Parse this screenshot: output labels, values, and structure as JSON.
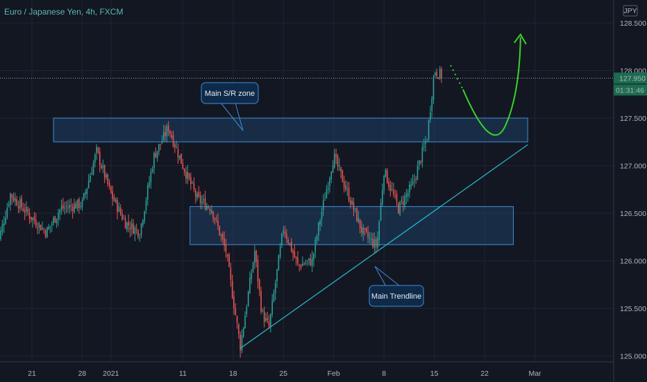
{
  "header": {
    "symbol": "Euro / Japanese Yen",
    "interval": "4h",
    "exchange": "FXCM",
    "currency_button": "JPY"
  },
  "price_axis": {
    "last_price": "127.950",
    "countdown": "01:31:46"
  },
  "annotations": {
    "zone_label": "Main S/R zone",
    "trendline_label": "Main Trendline"
  },
  "colors": {
    "background": "#131722",
    "bull": "#26a69a",
    "bear": "#ef5350",
    "zone_fill": "#1e3f63",
    "zone_border": "#3d8fe0",
    "trendline": "#22b8c8",
    "arrow": "#39d42b",
    "title": "#5db7b3"
  },
  "chart_data": {
    "type": "candlestick",
    "ylim": [
      124.95,
      128.7
    ],
    "y_ticks": [
      "125.000",
      "125.500",
      "126.000",
      "126.500",
      "127.000",
      "127.500",
      "128.000",
      "128.500"
    ],
    "x_ticks": [
      "21",
      "28",
      "2021",
      "11",
      "18",
      "25",
      "Feb",
      "8",
      "15",
      "22",
      "Mar"
    ],
    "price_path": [
      {
        "x": "Dec 16",
        "price": 126.1
      },
      {
        "x": "Dec 18",
        "price": 126.7
      },
      {
        "x": "Dec 21",
        "price": 126.45
      },
      {
        "x": "Dec 23",
        "price": 126.3
      },
      {
        "x": "Dec 25",
        "price": 126.55
      },
      {
        "x": "Dec 28",
        "price": 126.6
      },
      {
        "x": "Dec 30",
        "price": 127.15
      },
      {
        "x": "Jan 1",
        "price": 126.7
      },
      {
        "x": "Jan 3",
        "price": 126.4
      },
      {
        "x": "Jan 5",
        "price": 126.3
      },
      {
        "x": "Jan 7",
        "price": 127.1
      },
      {
        "x": "Jan 9",
        "price": 127.4
      },
      {
        "x": "Jan 11",
        "price": 127.0
      },
      {
        "x": "Jan 13",
        "price": 126.65
      },
      {
        "x": "Jan 15",
        "price": 126.55
      },
      {
        "x": "Jan 17",
        "price": 126.1
      },
      {
        "x": "Jan 19",
        "price": 125.1
      },
      {
        "x": "Jan 20",
        "price": 125.6
      },
      {
        "x": "Jan 21",
        "price": 126.1
      },
      {
        "x": "Jan 22",
        "price": 125.45
      },
      {
        "x": "Jan 23",
        "price": 125.3
      },
      {
        "x": "Jan 25",
        "price": 126.35
      },
      {
        "x": "Jan 27",
        "price": 125.95
      },
      {
        "x": "Jan 29",
        "price": 126.0
      },
      {
        "x": "Jan 30",
        "price": 126.4
      },
      {
        "x": "Feb 1",
        "price": 127.1
      },
      {
        "x": "Feb 3",
        "price": 126.7
      },
      {
        "x": "Feb 5",
        "price": 126.3
      },
      {
        "x": "Feb 7",
        "price": 126.15
      },
      {
        "x": "Feb 8",
        "price": 126.95
      },
      {
        "x": "Feb 10",
        "price": 126.55
      },
      {
        "x": "Feb 12",
        "price": 126.8
      },
      {
        "x": "Feb 14",
        "price": 127.3
      },
      {
        "x": "Feb 15",
        "price": 128.0
      },
      {
        "x": "Feb 16",
        "price": 127.95
      }
    ],
    "zones": [
      {
        "name": "Main S/R zone",
        "from_date": "Dec 24",
        "to_date": "Feb 28",
        "y_low": 127.25,
        "y_high": 127.5
      },
      {
        "from_date": "Jan 12",
        "to_date": "Feb 26",
        "y_low": 126.17,
        "y_high": 126.57
      }
    ],
    "trendline": {
      "label": "Main Trendline",
      "from": {
        "x": "Jan 19",
        "y": 125.08
      },
      "to": {
        "x": "Feb 28",
        "y": 127.22
      }
    },
    "projection": {
      "start": {
        "x": "Feb 19",
        "y": 127.8
      },
      "dip": {
        "x": "Feb 23",
        "y": 127.28
      },
      "end": {
        "x": "Feb 27",
        "y": 128.35
      }
    }
  }
}
